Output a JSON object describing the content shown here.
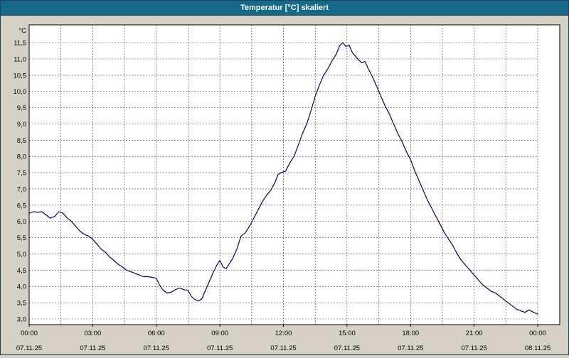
{
  "window": {
    "title": "Temperatur [°C] skaliert"
  },
  "colors": {
    "titlebar_bg": "#17698c",
    "titlebar_text": "#ffffff",
    "window_bg": "#d5d1c5",
    "plot_bg": "#ffffff",
    "grid": "#444444",
    "series": "#00008b",
    "plot_border": "#000000"
  },
  "chart_data": {
    "type": "line",
    "title": "Temperatur [°C] skaliert",
    "ylabel": "°C",
    "xlabel": "",
    "grid": true,
    "legend": false,
    "xlim_hours": [
      0,
      24
    ],
    "ylim": [
      3.0,
      11.5
    ],
    "x_minor_step_hours": 1.5,
    "y_ticks": [
      {
        "value": 11.5,
        "label": "11,5"
      },
      {
        "value": 11.0,
        "label": "11,0"
      },
      {
        "value": 10.5,
        "label": "10,5"
      },
      {
        "value": 10.0,
        "label": "10,0"
      },
      {
        "value": 9.5,
        "label": "9,5"
      },
      {
        "value": 9.0,
        "label": "9,0"
      },
      {
        "value": 8.5,
        "label": "8,5"
      },
      {
        "value": 8.0,
        "label": "8,0"
      },
      {
        "value": 7.5,
        "label": "7,5"
      },
      {
        "value": 7.0,
        "label": "7,0"
      },
      {
        "value": 6.5,
        "label": "6,5"
      },
      {
        "value": 6.0,
        "label": "6,0"
      },
      {
        "value": 5.5,
        "label": "5,5"
      },
      {
        "value": 5.0,
        "label": "5,0"
      },
      {
        "value": 4.5,
        "label": "4,5"
      },
      {
        "value": 4.0,
        "label": "4,0"
      },
      {
        "value": 3.5,
        "label": "3,5"
      },
      {
        "value": 3.0,
        "label": "3,0"
      }
    ],
    "x_ticks": [
      {
        "hour": 0,
        "time": "00:00",
        "date": "07.11.25"
      },
      {
        "hour": 3,
        "time": "03:00",
        "date": "07.11.25"
      },
      {
        "hour": 6,
        "time": "06:00",
        "date": "07.11.25"
      },
      {
        "hour": 9,
        "time": "09:00",
        "date": "07.11.25"
      },
      {
        "hour": 12,
        "time": "12:00",
        "date": "07.11.25"
      },
      {
        "hour": 15,
        "time": "15:00",
        "date": "07.11.25"
      },
      {
        "hour": 18,
        "time": "18:00",
        "date": "07.11.25"
      },
      {
        "hour": 21,
        "time": "21:00",
        "date": "07.11.25"
      },
      {
        "hour": 24,
        "time": "00:00",
        "date": "08.11.25"
      }
    ],
    "series": [
      {
        "name": "Temperatur",
        "color": "#00008b",
        "points": [
          [
            0,
            6.25
          ],
          [
            0.2,
            6.3
          ],
          [
            0.4,
            6.28
          ],
          [
            0.6,
            6.3
          ],
          [
            0.8,
            6.2
          ],
          [
            1.0,
            6.1
          ],
          [
            1.2,
            6.15
          ],
          [
            1.4,
            6.3
          ],
          [
            1.6,
            6.25
          ],
          [
            1.8,
            6.1
          ],
          [
            2.0,
            6.0
          ],
          [
            2.2,
            5.85
          ],
          [
            2.4,
            5.7
          ],
          [
            2.6,
            5.6
          ],
          [
            2.8,
            5.55
          ],
          [
            3.0,
            5.45
          ],
          [
            3.2,
            5.3
          ],
          [
            3.4,
            5.15
          ],
          [
            3.6,
            5.05
          ],
          [
            3.8,
            4.9
          ],
          [
            4.0,
            4.8
          ],
          [
            4.2,
            4.68
          ],
          [
            4.4,
            4.6
          ],
          [
            4.6,
            4.5
          ],
          [
            4.8,
            4.45
          ],
          [
            5.0,
            4.4
          ],
          [
            5.2,
            4.35
          ],
          [
            5.4,
            4.3
          ],
          [
            5.6,
            4.3
          ],
          [
            5.8,
            4.28
          ],
          [
            6.0,
            4.25
          ],
          [
            6.15,
            4.05
          ],
          [
            6.3,
            3.9
          ],
          [
            6.5,
            3.8
          ],
          [
            6.7,
            3.82
          ],
          [
            6.9,
            3.9
          ],
          [
            7.1,
            3.95
          ],
          [
            7.3,
            3.9
          ],
          [
            7.5,
            3.88
          ],
          [
            7.65,
            3.7
          ],
          [
            7.8,
            3.6
          ],
          [
            8.0,
            3.55
          ],
          [
            8.15,
            3.62
          ],
          [
            8.3,
            3.85
          ],
          [
            8.5,
            4.15
          ],
          [
            8.7,
            4.45
          ],
          [
            8.85,
            4.65
          ],
          [
            9.0,
            4.8
          ],
          [
            9.15,
            4.6
          ],
          [
            9.3,
            4.55
          ],
          [
            9.45,
            4.7
          ],
          [
            9.6,
            4.85
          ],
          [
            9.8,
            5.15
          ],
          [
            10.0,
            5.55
          ],
          [
            10.2,
            5.65
          ],
          [
            10.4,
            5.85
          ],
          [
            10.6,
            6.1
          ],
          [
            10.8,
            6.35
          ],
          [
            11.0,
            6.6
          ],
          [
            11.2,
            6.8
          ],
          [
            11.4,
            6.95
          ],
          [
            11.6,
            7.2
          ],
          [
            11.75,
            7.45
          ],
          [
            11.9,
            7.5
          ],
          [
            12.1,
            7.55
          ],
          [
            12.3,
            7.8
          ],
          [
            12.5,
            8.0
          ],
          [
            12.7,
            8.35
          ],
          [
            12.9,
            8.7
          ],
          [
            13.1,
            9.0
          ],
          [
            13.3,
            9.4
          ],
          [
            13.5,
            9.85
          ],
          [
            13.7,
            10.2
          ],
          [
            13.9,
            10.5
          ],
          [
            14.1,
            10.7
          ],
          [
            14.3,
            10.95
          ],
          [
            14.5,
            11.15
          ],
          [
            14.65,
            11.4
          ],
          [
            14.8,
            11.5
          ],
          [
            14.95,
            11.38
          ],
          [
            15.1,
            11.42
          ],
          [
            15.25,
            11.2
          ],
          [
            15.5,
            11.0
          ],
          [
            15.7,
            10.88
          ],
          [
            15.85,
            10.92
          ],
          [
            16.0,
            10.7
          ],
          [
            16.2,
            10.45
          ],
          [
            16.4,
            10.15
          ],
          [
            16.6,
            9.85
          ],
          [
            16.8,
            9.55
          ],
          [
            17.0,
            9.3
          ],
          [
            17.2,
            9.0
          ],
          [
            17.4,
            8.7
          ],
          [
            17.6,
            8.45
          ],
          [
            17.8,
            8.15
          ],
          [
            18.0,
            7.9
          ],
          [
            18.2,
            7.55
          ],
          [
            18.4,
            7.25
          ],
          [
            18.6,
            6.95
          ],
          [
            18.8,
            6.65
          ],
          [
            19.0,
            6.4
          ],
          [
            19.2,
            6.15
          ],
          [
            19.4,
            5.9
          ],
          [
            19.6,
            5.65
          ],
          [
            19.8,
            5.45
          ],
          [
            20.0,
            5.25
          ],
          [
            20.2,
            5.0
          ],
          [
            20.4,
            4.8
          ],
          [
            20.6,
            4.65
          ],
          [
            20.8,
            4.5
          ],
          [
            21.0,
            4.35
          ],
          [
            21.2,
            4.2
          ],
          [
            21.4,
            4.05
          ],
          [
            21.6,
            3.95
          ],
          [
            21.8,
            3.85
          ],
          [
            22.0,
            3.8
          ],
          [
            22.2,
            3.7
          ],
          [
            22.4,
            3.6
          ],
          [
            22.6,
            3.5
          ],
          [
            22.8,
            3.4
          ],
          [
            23.0,
            3.3
          ],
          [
            23.2,
            3.25
          ],
          [
            23.4,
            3.2
          ],
          [
            23.6,
            3.28
          ],
          [
            23.8,
            3.2
          ],
          [
            24.0,
            3.15
          ]
        ]
      }
    ]
  }
}
